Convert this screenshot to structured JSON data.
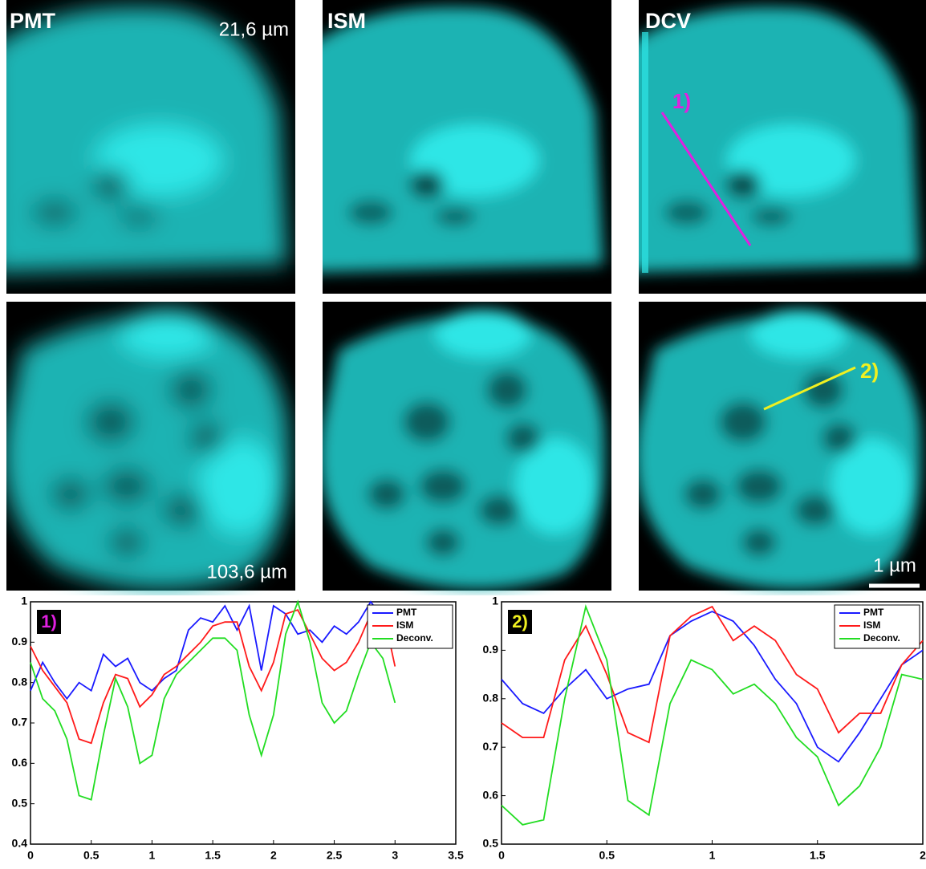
{
  "image_labels": [
    "PMT",
    "21,6 µm",
    "ISM",
    "DCV",
    "1)",
    "103,6 µm",
    "2)",
    "1 µm"
  ],
  "chart_data": [
    {
      "type": "line",
      "label": "1)",
      "x": [
        0,
        0.1,
        0.2,
        0.3,
        0.4,
        0.5,
        0.6,
        0.7,
        0.8,
        0.9,
        1.0,
        1.1,
        1.2,
        1.3,
        1.4,
        1.5,
        1.6,
        1.7,
        1.8,
        1.9,
        2.0,
        2.1,
        2.2,
        2.3,
        2.4,
        2.5,
        2.6,
        2.7,
        2.8,
        2.9,
        3.0
      ],
      "series": [
        {
          "name": "PMT",
          "color": "#1a1aff",
          "values": [
            0.78,
            0.85,
            0.8,
            0.76,
            0.8,
            0.78,
            0.87,
            0.84,
            0.86,
            0.8,
            0.78,
            0.81,
            0.83,
            0.93,
            0.96,
            0.95,
            0.99,
            0.93,
            0.99,
            0.83,
            0.99,
            0.97,
            0.92,
            0.93,
            0.9,
            0.94,
            0.92,
            0.95,
            1.0,
            0.96,
            null
          ]
        },
        {
          "name": "ISM",
          "color": "#ff1a1a",
          "values": [
            0.89,
            0.83,
            0.79,
            0.75,
            0.66,
            0.65,
            0.75,
            0.82,
            0.81,
            0.74,
            0.77,
            0.82,
            0.84,
            0.87,
            0.9,
            0.94,
            0.95,
            0.95,
            0.84,
            0.78,
            0.85,
            0.97,
            0.98,
            0.92,
            0.86,
            0.83,
            0.85,
            0.9,
            0.97,
            0.98,
            0.84
          ]
        },
        {
          "name": "Deconv.",
          "color": "#22dd22",
          "values": [
            0.85,
            0.76,
            0.73,
            0.66,
            0.52,
            0.51,
            0.67,
            0.81,
            0.74,
            0.6,
            0.62,
            0.76,
            0.82,
            0.85,
            0.88,
            0.91,
            0.91,
            0.88,
            0.72,
            0.62,
            0.72,
            0.92,
            1.0,
            0.9,
            0.75,
            0.7,
            0.73,
            0.82,
            0.9,
            0.86,
            0.75
          ]
        }
      ],
      "xlim": [
        0,
        3.5
      ],
      "xticks": [
        0,
        0.5,
        1,
        1.5,
        2,
        2.5,
        3,
        3.5
      ],
      "ylim": [
        0.4,
        1
      ],
      "yticks": [
        0.4,
        0.5,
        0.6,
        0.7,
        0.8,
        0.9,
        1
      ]
    },
    {
      "type": "line",
      "label": "2)",
      "x": [
        0,
        0.1,
        0.2,
        0.3,
        0.4,
        0.5,
        0.6,
        0.7,
        0.8,
        0.9,
        1.0,
        1.1,
        1.2,
        1.3,
        1.4,
        1.5,
        1.6,
        1.7,
        1.8,
        1.9,
        2.0
      ],
      "series": [
        {
          "name": "PMT",
          "color": "#1a1aff",
          "values": [
            0.84,
            0.79,
            0.77,
            0.82,
            0.86,
            0.8,
            0.82,
            0.83,
            0.93,
            0.96,
            0.98,
            0.96,
            0.91,
            0.84,
            0.79,
            0.7,
            0.67,
            0.73,
            0.8,
            0.87,
            0.9
          ]
        },
        {
          "name": "ISM",
          "color": "#ff1a1a",
          "values": [
            0.75,
            0.72,
            0.72,
            0.88,
            0.95,
            0.85,
            0.73,
            0.71,
            0.93,
            0.97,
            0.99,
            0.92,
            0.95,
            0.92,
            0.85,
            0.82,
            0.73,
            0.77,
            0.77,
            0.87,
            0.92
          ]
        },
        {
          "name": "Deconv.",
          "color": "#22dd22",
          "values": [
            0.58,
            0.54,
            0.55,
            0.8,
            0.99,
            0.88,
            0.59,
            0.56,
            0.79,
            0.88,
            0.86,
            0.81,
            0.83,
            0.79,
            0.72,
            0.68,
            0.58,
            0.62,
            0.7,
            0.85,
            0.84
          ]
        }
      ],
      "xlim": [
        0,
        2
      ],
      "xticks": [
        0,
        0.5,
        1,
        1.5,
        2
      ],
      "ylim": [
        0.5,
        1
      ],
      "yticks": [
        0.5,
        0.6,
        0.7,
        0.8,
        0.9,
        1
      ]
    }
  ]
}
